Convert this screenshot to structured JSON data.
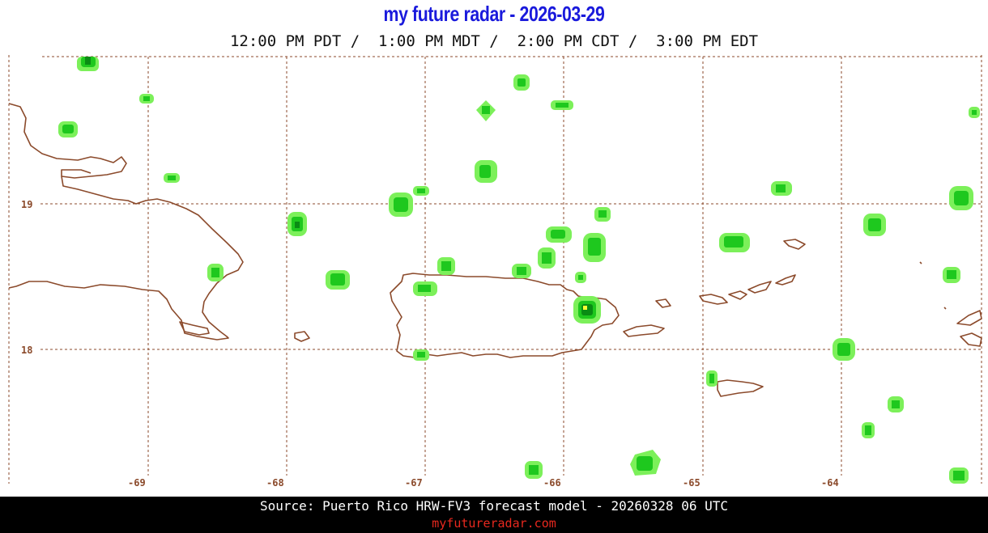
{
  "header": {
    "title": "my future radar - 2026-03-29",
    "times": "12:00 PM PDT /  1:00 PM MDT /  2:00 PM CDT /  3:00 PM EDT"
  },
  "map": {
    "lon_labels": [
      "-69",
      "-68",
      "-67",
      "-66",
      "-65",
      "-64"
    ],
    "lat_labels": [
      "19",
      "18"
    ],
    "colors": {
      "coastline": "#8b4a2b",
      "grid": "#8b4a2b",
      "echo_light": "#7cf05a",
      "echo_medium": "#1ec81e",
      "echo_heavy": "#0a8c14",
      "echo_peak": "#ffff33"
    }
  },
  "footer": {
    "source": "Source: Puerto Rico HRW-FV3 forecast model - 20260328 06 UTC",
    "site": "myfutureradar.com"
  }
}
